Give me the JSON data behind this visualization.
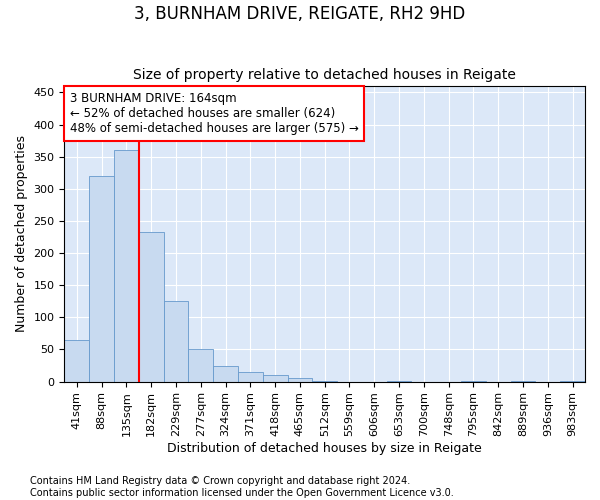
{
  "title": "3, BURNHAM DRIVE, REIGATE, RH2 9HD",
  "subtitle": "Size of property relative to detached houses in Reigate",
  "xlabel": "Distribution of detached houses by size in Reigate",
  "ylabel": "Number of detached properties",
  "footer_line1": "Contains HM Land Registry data © Crown copyright and database right 2024.",
  "footer_line2": "Contains public sector information licensed under the Open Government Licence v3.0.",
  "bin_labels": [
    "41sqm",
    "88sqm",
    "135sqm",
    "182sqm",
    "229sqm",
    "277sqm",
    "324sqm",
    "371sqm",
    "418sqm",
    "465sqm",
    "512sqm",
    "559sqm",
    "606sqm",
    "653sqm",
    "700sqm",
    "748sqm",
    "795sqm",
    "842sqm",
    "889sqm",
    "936sqm",
    "983sqm"
  ],
  "bar_values": [
    65,
    320,
    360,
    233,
    125,
    50,
    25,
    15,
    10,
    5,
    1,
    0,
    0,
    1,
    0,
    0,
    1,
    0,
    1,
    0,
    1
  ],
  "bar_color": "#c8daf0",
  "bar_edge_color": "#6699cc",
  "property_line_x": 2.5,
  "annotation_text": "3 BURNHAM DRIVE: 164sqm\n← 52% of detached houses are smaller (624)\n48% of semi-detached houses are larger (575) →",
  "annotation_box_color": "white",
  "annotation_box_edge_color": "red",
  "vline_color": "red",
  "ylim": [
    0,
    460
  ],
  "yticks": [
    0,
    50,
    100,
    150,
    200,
    250,
    300,
    350,
    400,
    450
  ],
  "background_color": "#dce8f8",
  "grid_color": "white",
  "title_fontsize": 12,
  "subtitle_fontsize": 10,
  "axis_label_fontsize": 9,
  "tick_fontsize": 8,
  "footer_fontsize": 7
}
